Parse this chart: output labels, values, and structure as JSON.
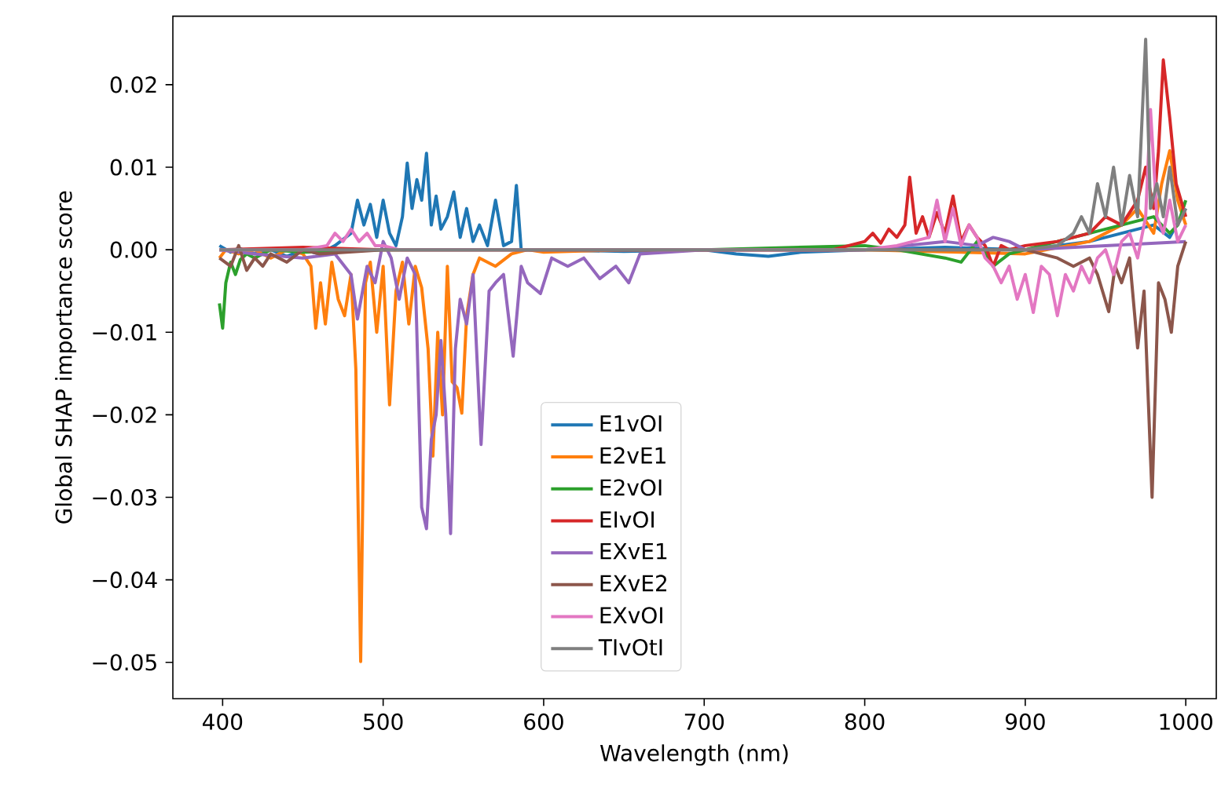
{
  "chart_data": {
    "type": "line",
    "xlabel": "Wavelength (nm)",
    "ylabel": "Global SHAP importance score",
    "xlim": [
      369,
      1019
    ],
    "ylim": [
      -0.0544,
      0.0283
    ],
    "xticks": [
      400,
      500,
      600,
      700,
      800,
      900,
      1000
    ],
    "yticks": [
      {
        "value": -0.05,
        "label": "−0.05"
      },
      {
        "value": -0.04,
        "label": "−0.04"
      },
      {
        "value": -0.03,
        "label": "−0.03"
      },
      {
        "value": -0.02,
        "label": "−0.02"
      },
      {
        "value": -0.01,
        "label": "−0.01"
      },
      {
        "value": 0,
        "label": "0.00"
      },
      {
        "value": 0.01,
        "label": "0.01"
      },
      {
        "value": 0.02,
        "label": "0.02"
      }
    ],
    "legend": "bottom",
    "grid": false,
    "marker": "none",
    "line_style": "solid",
    "series": [
      {
        "name": "E1vOI",
        "color": "#1f77b4",
        "x": [
          398,
          405,
          410,
          420,
          430,
          440,
          450,
          460,
          470,
          480,
          484,
          488,
          492,
          496,
          500,
          504,
          508,
          512,
          515,
          518,
          521,
          524,
          527,
          530,
          533,
          536,
          540,
          544,
          548,
          552,
          556,
          560,
          565,
          570,
          575,
          580,
          583,
          586,
          600,
          650,
          700,
          720,
          740,
          760,
          800,
          850,
          900,
          920,
          940,
          960,
          980,
          990,
          1000
        ],
        "values": [
          0.0005,
          -0.0003,
          0.0002,
          -0.0005,
          0,
          -0.0008,
          0,
          -0.0005,
          0.0005,
          0.002,
          0.006,
          0.003,
          0.0055,
          0.0015,
          0.006,
          0.002,
          0.0005,
          0.004,
          0.0105,
          0.005,
          0.0085,
          0.006,
          0.0117,
          0.003,
          0.0065,
          0.0025,
          0.004,
          0.007,
          0.0015,
          0.005,
          0.001,
          0.003,
          0.0005,
          0.006,
          0.0005,
          0.001,
          0.0078,
          0,
          0,
          -0.0002,
          0,
          -0.0005,
          -0.0008,
          -0.0003,
          0,
          0.0003,
          0,
          0.0005,
          0.001,
          0.002,
          0.003,
          0.0015,
          0.005
        ]
      },
      {
        "name": "E2vE1",
        "color": "#ff7f0e",
        "x": [
          398,
          402,
          410,
          420,
          430,
          440,
          450,
          455,
          458,
          461,
          464,
          468,
          472,
          476,
          480,
          483,
          486,
          489,
          492,
          496,
          500,
          504,
          508,
          512,
          516,
          520,
          524,
          528,
          531,
          534,
          537,
          540,
          543,
          546,
          549,
          552,
          556,
          560,
          570,
          580,
          590,
          600,
          650,
          700,
          800,
          900,
          940,
          960,
          970,
          980,
          985,
          990,
          995,
          1000
        ],
        "values": [
          -0.001,
          0,
          -0.0005,
          0,
          -0.001,
          0,
          -0.0005,
          -0.002,
          -0.0095,
          -0.004,
          -0.009,
          -0.0015,
          -0.006,
          -0.008,
          -0.003,
          -0.0145,
          -0.0499,
          -0.004,
          -0.0015,
          -0.01,
          -0.002,
          -0.0188,
          -0.005,
          -0.0015,
          -0.009,
          -0.002,
          -0.0046,
          -0.012,
          -0.025,
          -0.01,
          -0.02,
          -0.002,
          -0.016,
          -0.0167,
          -0.0198,
          -0.008,
          -0.003,
          -0.001,
          -0.002,
          -0.0005,
          0,
          -0.0003,
          0,
          0,
          0,
          -0.0005,
          0.001,
          0.003,
          0.005,
          0.002,
          0.008,
          0.012,
          0.006,
          0.003
        ]
      },
      {
        "name": "E2vOI",
        "color": "#2ca02c",
        "x": [
          398,
          400,
          402,
          405,
          408,
          411,
          415,
          420,
          430,
          450,
          500,
          600,
          700,
          800,
          820,
          850,
          860,
          870,
          880,
          890,
          900,
          920,
          940,
          960,
          980,
          990,
          995,
          1000
        ],
        "values": [
          -0.0065,
          -0.0095,
          -0.004,
          -0.0015,
          -0.003,
          -0.0012,
          -0.0005,
          -0.001,
          0,
          -0.0003,
          0,
          0,
          0,
          0.0005,
          0,
          -0.001,
          -0.0015,
          0.001,
          -0.002,
          -0.0005,
          0,
          0.001,
          0.002,
          0.003,
          0.004,
          0.002,
          0.003,
          0.006
        ]
      },
      {
        "name": "EIvOI",
        "color": "#d62728",
        "x": [
          398,
          450,
          500,
          600,
          700,
          780,
          790,
          800,
          805,
          810,
          815,
          820,
          825,
          828,
          832,
          836,
          840,
          845,
          850,
          855,
          860,
          865,
          870,
          875,
          880,
          885,
          890,
          900,
          920,
          940,
          950,
          960,
          970,
          975,
          980,
          983,
          986,
          990,
          994,
          1000
        ],
        "values": [
          0,
          0.0003,
          0,
          0,
          0,
          0,
          0.0005,
          0.001,
          0.002,
          0.0008,
          0.0025,
          0.0015,
          0.003,
          0.0088,
          0.002,
          0.004,
          0.0015,
          0.0045,
          0.002,
          0.0065,
          0.001,
          0.003,
          0.0015,
          0.0005,
          -0.002,
          0.0005,
          0,
          0.0005,
          0.001,
          0.002,
          0.004,
          0.003,
          0.006,
          0.01,
          0.005,
          0.012,
          0.023,
          0.016,
          0.008,
          0.004
        ]
      },
      {
        "name": "EXvE1",
        "color": "#9467bd",
        "x": [
          398,
          420,
          450,
          470,
          480,
          484,
          490,
          495,
          500,
          505,
          510,
          515,
          520,
          524,
          527,
          530,
          533,
          536,
          539,
          542,
          545,
          548,
          552,
          556,
          561,
          566,
          570,
          575,
          581,
          586,
          590,
          598,
          605,
          615,
          625,
          635,
          645,
          653,
          660,
          700,
          800,
          850,
          870,
          880,
          890,
          900,
          950,
          1000
        ],
        "values": [
          0,
          -0.0005,
          -0.001,
          -0.0005,
          -0.003,
          -0.0084,
          -0.002,
          -0.004,
          0.001,
          -0.001,
          -0.006,
          -0.001,
          -0.003,
          -0.0312,
          -0.0338,
          -0.023,
          -0.02,
          -0.011,
          -0.02,
          -0.0344,
          -0.012,
          -0.006,
          -0.009,
          -0.003,
          -0.0236,
          -0.005,
          -0.004,
          -0.003,
          -0.0129,
          -0.002,
          -0.004,
          -0.0053,
          -0.001,
          -0.002,
          -0.001,
          -0.0035,
          -0.002,
          -0.004,
          -0.0005,
          0,
          0,
          0.001,
          0.0005,
          0.0015,
          0.001,
          0,
          0.0005,
          0.001
        ]
      },
      {
        "name": "EXvE2",
        "color": "#8c564b",
        "x": [
          398,
          405,
          410,
          415,
          420,
          425,
          430,
          440,
          450,
          460,
          500,
          600,
          700,
          800,
          900,
          920,
          930,
          940,
          945,
          952,
          956,
          960,
          965,
          970,
          974,
          979,
          983,
          987,
          991,
          995,
          1000
        ],
        "values": [
          -0.001,
          -0.002,
          0.0005,
          -0.0025,
          -0.001,
          -0.002,
          -0.0005,
          -0.0015,
          0,
          -0.0005,
          0,
          0,
          0,
          0,
          0,
          -0.001,
          -0.002,
          -0.001,
          -0.003,
          -0.0075,
          -0.002,
          -0.004,
          -0.001,
          -0.0119,
          -0.005,
          -0.03,
          -0.004,
          -0.006,
          -0.01,
          -0.002,
          0.001
        ]
      },
      {
        "name": "EXvOI",
        "color": "#e377c2",
        "x": [
          398,
          450,
          465,
          470,
          475,
          480,
          485,
          490,
          495,
          500,
          510,
          600,
          700,
          800,
          820,
          830,
          840,
          845,
          850,
          855,
          860,
          865,
          870,
          875,
          880,
          885,
          890,
          895,
          900,
          905,
          910,
          915,
          920,
          925,
          930,
          935,
          940,
          945,
          950,
          955,
          960,
          965,
          970,
          975,
          978,
          982,
          986,
          990,
          995,
          1000
        ],
        "values": [
          0,
          0,
          0.0005,
          0.002,
          0.001,
          0.0025,
          0.001,
          0.002,
          0.0005,
          0.0005,
          0,
          0,
          0,
          0,
          0.0005,
          0.001,
          0.0015,
          0.006,
          0.001,
          0.005,
          0.0005,
          0.003,
          0.0015,
          -0.001,
          -0.002,
          -0.004,
          -0.002,
          -0.006,
          -0.003,
          -0.0076,
          -0.002,
          -0.003,
          -0.008,
          -0.003,
          -0.005,
          -0.002,
          -0.004,
          -0.001,
          0,
          -0.003,
          0.001,
          0.002,
          -0.001,
          0.004,
          0.017,
          0.004,
          0.002,
          0.006,
          0.001,
          0.003
        ]
      },
      {
        "name": "TIvOtI",
        "color": "#7f7f7f",
        "x": [
          398,
          500,
          600,
          700,
          800,
          900,
          920,
          930,
          935,
          940,
          945,
          950,
          955,
          960,
          965,
          970,
          975,
          978,
          982,
          986,
          990,
          995,
          1000
        ],
        "values": [
          0,
          0,
          0,
          0,
          0,
          0,
          0.0005,
          0.002,
          0.004,
          0.002,
          0.008,
          0.004,
          0.01,
          0.003,
          0.009,
          0.004,
          0.0255,
          0.005,
          0.008,
          0.004,
          0.01,
          0.003,
          0.005
        ]
      }
    ]
  }
}
